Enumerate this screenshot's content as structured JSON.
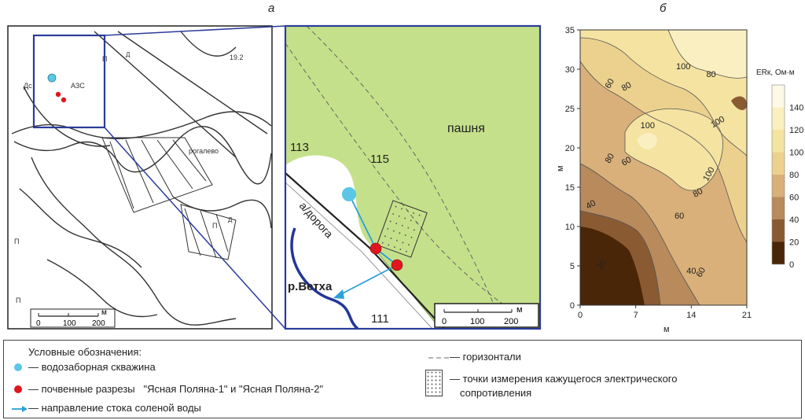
{
  "panels": {
    "a": "а",
    "b": "б"
  },
  "map_labels": {
    "arable": "пашня",
    "road": "а/дорога",
    "river": "р.Ветха",
    "contour_113": "113",
    "contour_115": "115",
    "contour_111": "111"
  },
  "scale_bar": {
    "t0": "0",
    "t100": "100",
    "t200": "200",
    "unit": "м"
  },
  "contour_map": {
    "x_axis_label": "м",
    "y_axis_label": "м",
    "x_ticks": [
      "0",
      "7",
      "14",
      "21"
    ],
    "y_ticks": [
      "0",
      "5",
      "10",
      "15",
      "20",
      "25",
      "30",
      "35"
    ],
    "x_range": [
      0,
      21
    ],
    "y_range": [
      0,
      35
    ],
    "colorbar_title": "ERк, Ом·м",
    "colorbar_ticks": [
      "0",
      "20",
      "40",
      "60",
      "80",
      "100",
      "120",
      "140"
    ],
    "colorbar_colors": [
      "#4a2608",
      "#8a5a33",
      "#b88a5c",
      "#d9b07a",
      "#ecd18e",
      "#f5e3a2",
      "#faefc0",
      "#fdf9e6"
    ],
    "contour_labels": [
      "20",
      "40",
      "40",
      "60",
      "60",
      "60",
      "60",
      "80",
      "80",
      "80",
      "80",
      "100",
      "100",
      "100",
      "100"
    ]
  },
  "legend": {
    "title": "Условные обозначения:",
    "well": "— водозаборная скважина",
    "pits": "— почвенные разрезы   \"Ясная Поляна-1\" и \"Ясная Поляна-2\"",
    "flow": "— направление стока соленой воды",
    "contours": "— горизонтали",
    "points_line1": "— точки измерения кажущегося электрического",
    "points_line2": "сопротивления",
    "colors": {
      "well": "#5bc6e6",
      "pit": "#e0161e",
      "flow": "#2b9fd8"
    }
  }
}
